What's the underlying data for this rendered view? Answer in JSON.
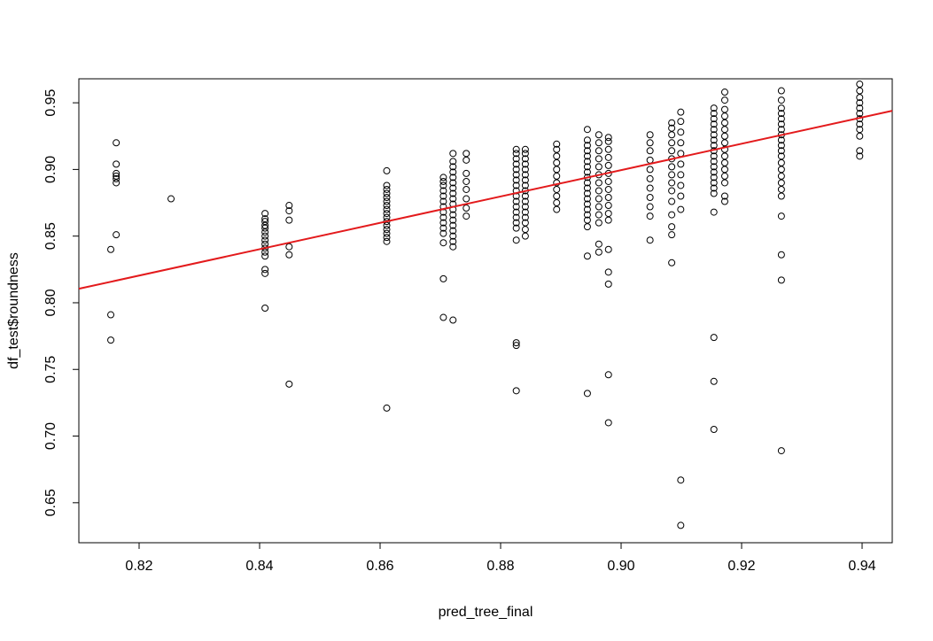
{
  "chart_data": {
    "type": "scatter",
    "title": "",
    "xlabel": "pred_tree_final",
    "ylabel": "df_test$roundness",
    "xlim": [
      0.81,
      0.945
    ],
    "ylim": [
      0.62,
      0.968
    ],
    "x_ticks": [
      0.82,
      0.84,
      0.86,
      0.88,
      0.9,
      0.92,
      0.94
    ],
    "y_ticks": [
      0.65,
      0.7,
      0.75,
      0.8,
      0.85,
      0.9,
      0.95
    ],
    "x_tick_labels": [
      "0.82",
      "0.84",
      "0.86",
      "0.88",
      "0.90",
      "0.92",
      "0.94"
    ],
    "y_tick_labels": [
      "0.65",
      "0.70",
      "0.75",
      "0.80",
      "0.85",
      "0.90",
      "0.95"
    ],
    "grid": false,
    "legend": "none",
    "point_color": "#000000",
    "fit_line": {
      "color": "#e31a1c",
      "x": [
        0.81,
        0.945
      ],
      "y": [
        0.8105,
        0.944
      ]
    },
    "clusters": [
      {
        "x": 0.8153,
        "y": [
          0.772,
          0.791,
          0.84
        ]
      },
      {
        "x": 0.8162,
        "y": [
          0.851,
          0.89,
          0.893,
          0.895,
          0.897,
          0.904,
          0.92
        ]
      },
      {
        "x": 0.8253,
        "y": [
          0.878
        ]
      },
      {
        "x": 0.8409,
        "y": [
          0.796,
          0.822,
          0.825,
          0.835,
          0.838,
          0.841,
          0.844,
          0.847,
          0.85,
          0.853,
          0.856,
          0.858,
          0.861,
          0.863,
          0.867
        ]
      },
      {
        "x": 0.8449,
        "y": [
          0.739,
          0.836,
          0.842,
          0.862,
          0.869,
          0.873
        ]
      },
      {
        "x": 0.8611,
        "y": [
          0.721,
          0.846,
          0.849,
          0.852,
          0.855,
          0.858,
          0.861,
          0.864,
          0.867,
          0.87,
          0.873,
          0.876,
          0.879,
          0.882,
          0.885,
          0.888,
          0.899
        ]
      },
      {
        "x": 0.8705,
        "y": [
          0.789,
          0.818,
          0.845,
          0.852,
          0.856,
          0.86,
          0.864,
          0.868,
          0.872,
          0.876,
          0.88,
          0.884,
          0.888,
          0.891,
          0.894
        ]
      },
      {
        "x": 0.8721,
        "y": [
          0.787,
          0.842,
          0.846,
          0.85,
          0.854,
          0.858,
          0.862,
          0.866,
          0.87,
          0.874,
          0.878,
          0.882,
          0.886,
          0.89,
          0.894,
          0.898,
          0.902,
          0.906,
          0.912
        ]
      },
      {
        "x": 0.8743,
        "y": [
          0.865,
          0.871,
          0.878,
          0.885,
          0.891,
          0.897,
          0.907,
          0.912
        ]
      },
      {
        "x": 0.8826,
        "y": [
          0.734,
          0.768,
          0.77,
          0.847,
          0.856,
          0.86,
          0.864,
          0.868,
          0.872,
          0.876,
          0.88,
          0.884,
          0.888,
          0.892,
          0.896,
          0.9,
          0.904,
          0.908,
          0.912,
          0.915
        ]
      },
      {
        "x": 0.8841,
        "y": [
          0.85,
          0.855,
          0.86,
          0.864,
          0.868,
          0.872,
          0.876,
          0.88,
          0.884,
          0.888,
          0.892,
          0.896,
          0.9,
          0.904,
          0.908,
          0.912,
          0.915
        ]
      },
      {
        "x": 0.8893,
        "y": [
          0.87,
          0.875,
          0.88,
          0.885,
          0.89,
          0.895,
          0.9,
          0.905,
          0.91,
          0.915,
          0.919
        ]
      },
      {
        "x": 0.8944,
        "y": [
          0.732,
          0.835,
          0.857,
          0.862,
          0.866,
          0.87,
          0.874,
          0.878,
          0.882,
          0.886,
          0.89,
          0.894,
          0.898,
          0.902,
          0.906,
          0.91,
          0.914,
          0.918,
          0.922,
          0.93
        ]
      },
      {
        "x": 0.8963,
        "y": [
          0.838,
          0.844,
          0.86,
          0.866,
          0.872,
          0.878,
          0.884,
          0.89,
          0.896,
          0.902,
          0.908,
          0.914,
          0.92,
          0.926
        ]
      },
      {
        "x": 0.8979,
        "y": [
          0.71,
          0.746,
          0.814,
          0.823,
          0.84,
          0.862,
          0.867,
          0.873,
          0.879,
          0.885,
          0.891,
          0.897,
          0.903,
          0.909,
          0.915,
          0.921,
          0.924
        ]
      },
      {
        "x": 0.9048,
        "y": [
          0.847,
          0.865,
          0.872,
          0.879,
          0.886,
          0.893,
          0.9,
          0.907,
          0.914,
          0.92,
          0.926
        ]
      },
      {
        "x": 0.9084,
        "y": [
          0.83,
          0.851,
          0.857,
          0.866,
          0.876,
          0.884,
          0.89,
          0.896,
          0.902,
          0.908,
          0.914,
          0.92,
          0.926,
          0.931,
          0.935
        ]
      },
      {
        "x": 0.9099,
        "y": [
          0.633,
          0.667,
          0.87,
          0.88,
          0.888,
          0.896,
          0.904,
          0.912,
          0.92,
          0.928,
          0.936,
          0.943
        ]
      },
      {
        "x": 0.9154,
        "y": [
          0.705,
          0.741,
          0.774,
          0.868,
          0.882,
          0.886,
          0.89,
          0.894,
          0.898,
          0.902,
          0.906,
          0.91,
          0.914,
          0.918,
          0.922,
          0.926,
          0.93,
          0.934,
          0.938,
          0.942,
          0.946
        ]
      },
      {
        "x": 0.9172,
        "y": [
          0.876,
          0.88,
          0.89,
          0.895,
          0.9,
          0.905,
          0.91,
          0.915,
          0.92,
          0.925,
          0.93,
          0.935,
          0.94,
          0.945,
          0.952,
          0.958
        ]
      },
      {
        "x": 0.9266,
        "y": [
          0.689,
          0.817,
          0.836,
          0.865,
          0.88,
          0.885,
          0.89,
          0.895,
          0.9,
          0.905,
          0.91,
          0.914,
          0.918,
          0.922,
          0.926,
          0.93,
          0.934,
          0.938,
          0.942,
          0.946,
          0.952,
          0.959
        ]
      },
      {
        "x": 0.9396,
        "y": [
          0.91,
          0.914,
          0.925,
          0.93,
          0.934,
          0.938,
          0.942,
          0.946,
          0.95,
          0.954,
          0.959,
          0.964
        ]
      }
    ]
  }
}
